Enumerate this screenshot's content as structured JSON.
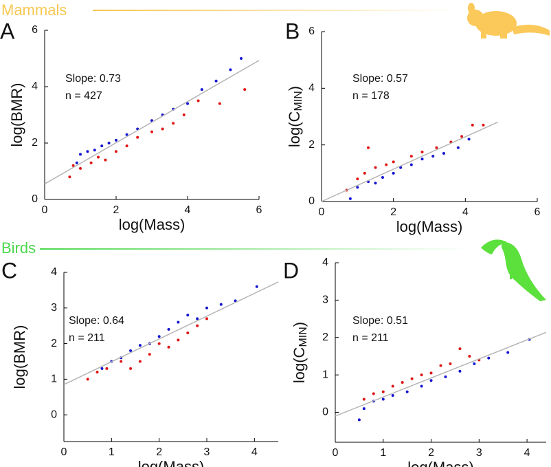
{
  "sections": [
    {
      "label": "Mammals",
      "color": "#f7c752"
    },
    {
      "label": "Birds",
      "color": "#4cd84c"
    }
  ],
  "chart_data": [
    {
      "type": "scatter",
      "panel": "A",
      "xlabel": "log(Mass)",
      "ylabel": "log(BMR)",
      "annotations": [
        "Slope: 0.73",
        "n = 427"
      ],
      "xlim": [
        0,
        6
      ],
      "ylim": [
        0,
        6
      ],
      "xticks": [
        0,
        2,
        4,
        6
      ],
      "yticks": [
        0,
        2,
        4,
        6
      ],
      "series": [
        {
          "color": "#1414d2",
          "x": [
            0.9,
            1.0,
            1.2,
            1.4,
            1.6,
            1.8,
            2.0,
            2.3,
            2.6,
            3.0,
            3.3,
            3.6,
            4.0,
            4.4,
            4.8,
            5.2,
            5.5
          ],
          "values": [
            1.3,
            1.6,
            1.7,
            1.75,
            1.9,
            2.0,
            2.1,
            2.3,
            2.5,
            2.8,
            3.0,
            3.2,
            3.4,
            3.9,
            4.2,
            4.6,
            5.0
          ]
        },
        {
          "color": "#e01414",
          "x": [
            0.7,
            0.8,
            1.0,
            1.3,
            1.5,
            1.7,
            2.0,
            2.3,
            2.6,
            3.0,
            3.3,
            3.6,
            3.9,
            4.3,
            4.9,
            5.6
          ],
          "values": [
            0.8,
            1.2,
            1.1,
            1.3,
            1.5,
            1.4,
            1.7,
            1.9,
            2.2,
            2.4,
            2.5,
            2.7,
            3.0,
            3.5,
            3.4,
            3.9
          ]
        }
      ],
      "fit": {
        "color": "#b4b4b4",
        "x": [
          0,
          6
        ],
        "values": [
          0.55,
          4.93
        ]
      }
    },
    {
      "type": "scatter",
      "panel": "B",
      "xlabel": "log(Mass)",
      "ylabel": {
        "text": "log(C",
        "sub": "MIN",
        "tail": ")"
      },
      "annotations": [
        "Slope: 0.57",
        "n = 178"
      ],
      "xlim": [
        0,
        6
      ],
      "ylim": [
        0,
        6
      ],
      "xticks": [
        0,
        2,
        4,
        6
      ],
      "yticks": [
        0,
        2,
        4,
        6
      ],
      "series": [
        {
          "color": "#e01414",
          "x": [
            0.7,
            1.0,
            1.2,
            1.3,
            1.5,
            1.8,
            2.0,
            2.5,
            2.8,
            3.2,
            3.6,
            3.9,
            4.2,
            4.5
          ],
          "values": [
            0.4,
            0.8,
            1.0,
            1.9,
            1.2,
            1.3,
            1.4,
            1.6,
            1.75,
            1.9,
            2.1,
            2.3,
            2.7,
            2.7
          ]
        },
        {
          "color": "#1414d2",
          "x": [
            0.8,
            1.0,
            1.3,
            1.5,
            1.7,
            2.0,
            2.2,
            2.5,
            2.8,
            3.1,
            3.4,
            3.8,
            4.1
          ],
          "values": [
            0.1,
            0.5,
            0.7,
            0.65,
            0.85,
            1.0,
            1.2,
            1.3,
            1.5,
            1.6,
            1.7,
            1.9,
            2.2
          ]
        }
      ],
      "fit": {
        "color": "#b4b4b4",
        "x": [
          0,
          4.9
        ],
        "values": [
          0,
          2.8
        ]
      }
    },
    {
      "type": "scatter",
      "panel": "C",
      "xlabel": "log(Mass)",
      "ylabel": "log(BMR)",
      "annotations": [
        "Slope: 0.64",
        "n = 211"
      ],
      "xlim": [
        0,
        4.5
      ],
      "ylim": [
        -0.75,
        4
      ],
      "xticks": [
        0,
        1,
        2,
        3,
        4
      ],
      "yticks": [
        0,
        1,
        2,
        3,
        4
      ],
      "series": [
        {
          "color": "#1414d2",
          "x": [
            0.8,
            1.0,
            1.2,
            1.4,
            1.6,
            1.8,
            2.0,
            2.2,
            2.4,
            2.6,
            2.8,
            3.0,
            3.3,
            3.6,
            4.05
          ],
          "values": [
            1.3,
            1.5,
            1.6,
            1.8,
            1.95,
            2.0,
            2.2,
            2.4,
            2.6,
            2.8,
            2.7,
            3.0,
            3.1,
            3.2,
            3.6
          ]
        },
        {
          "color": "#e01414",
          "x": [
            0.5,
            0.7,
            0.9,
            1.2,
            1.4,
            1.6,
            1.8,
            2.0,
            2.2,
            2.4,
            2.6,
            2.8,
            3.0
          ],
          "values": [
            1.0,
            1.2,
            1.3,
            1.5,
            1.3,
            1.5,
            1.7,
            2.0,
            1.9,
            2.1,
            2.3,
            2.5,
            2.7
          ]
        }
      ],
      "fit": {
        "color": "#b4b4b4",
        "x": [
          0,
          4.5
        ],
        "values": [
          0.85,
          3.73
        ]
      }
    },
    {
      "type": "scatter",
      "panel": "D",
      "xlabel": "log(Mass)",
      "ylabel": {
        "text": "log(C",
        "sub": "MIN",
        "tail": ")"
      },
      "annotations": [
        "Slope: 0.51",
        "n = 211"
      ],
      "xlim": [
        0,
        4.4
      ],
      "ylim": [
        -0.8,
        4
      ],
      "xticks": [
        0,
        1,
        2,
        3,
        4
      ],
      "yticks": [
        0,
        1,
        2,
        3,
        4
      ],
      "series": [
        {
          "color": "#e01414",
          "x": [
            0.6,
            0.8,
            1.0,
            1.2,
            1.4,
            1.6,
            1.8,
            2.0,
            2.2,
            2.4,
            2.6,
            2.8,
            3.0
          ],
          "values": [
            0.35,
            0.5,
            0.55,
            0.7,
            0.8,
            0.9,
            1.0,
            1.05,
            1.25,
            1.3,
            1.7,
            1.5,
            1.4
          ]
        },
        {
          "color": "#1414d2",
          "x": [
            0.5,
            0.6,
            0.8,
            1.0,
            1.2,
            1.5,
            1.8,
            2.0,
            2.3,
            2.6,
            2.9,
            3.2,
            3.6,
            4.05
          ],
          "values": [
            -0.2,
            0.1,
            0.3,
            0.35,
            0.45,
            0.55,
            0.7,
            0.85,
            0.95,
            1.1,
            1.3,
            1.45,
            1.6,
            1.95
          ]
        }
      ],
      "fit": {
        "color": "#b4b4b4",
        "x": [
          0,
          4.4
        ],
        "values": [
          -0.1,
          2.14
        ]
      }
    }
  ]
}
